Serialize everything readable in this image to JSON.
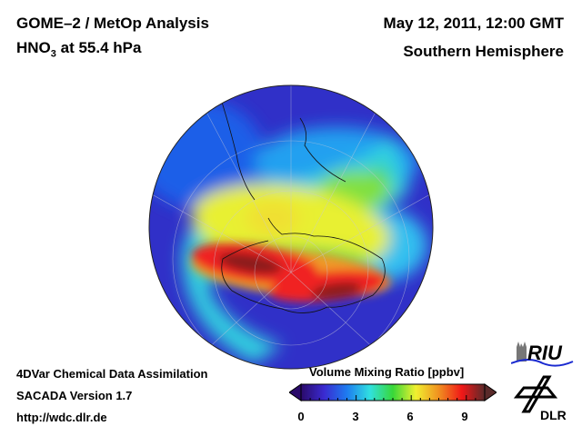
{
  "header": {
    "title_line1": "GOME–2 / MetOp Analysis",
    "species": "HNO",
    "species_sub": "3",
    "pressure_level": " at 55.4 hPa",
    "date": "May 12, 2011, 12:00 GMT",
    "hemisphere": "Southern Hemisphere"
  },
  "footer": {
    "line1": "4DVar Chemical Data Assimilation",
    "line2": "SACADA Version 1.7",
    "line3": "http://wdc.dlr.de"
  },
  "colorbar": {
    "title": "Volume Mixing Ratio [ppbv]",
    "ticks": [
      "0",
      "3",
      "6",
      "9"
    ],
    "range": [
      0,
      10
    ],
    "colors": [
      "#2a0a6a",
      "#3a2ad0",
      "#1e7cf0",
      "#30e0e0",
      "#38d838",
      "#f0f030",
      "#f09020",
      "#f01818",
      "#5a2a2a"
    ]
  },
  "logos": {
    "riu": "RIU",
    "dlr": "DLR"
  }
}
